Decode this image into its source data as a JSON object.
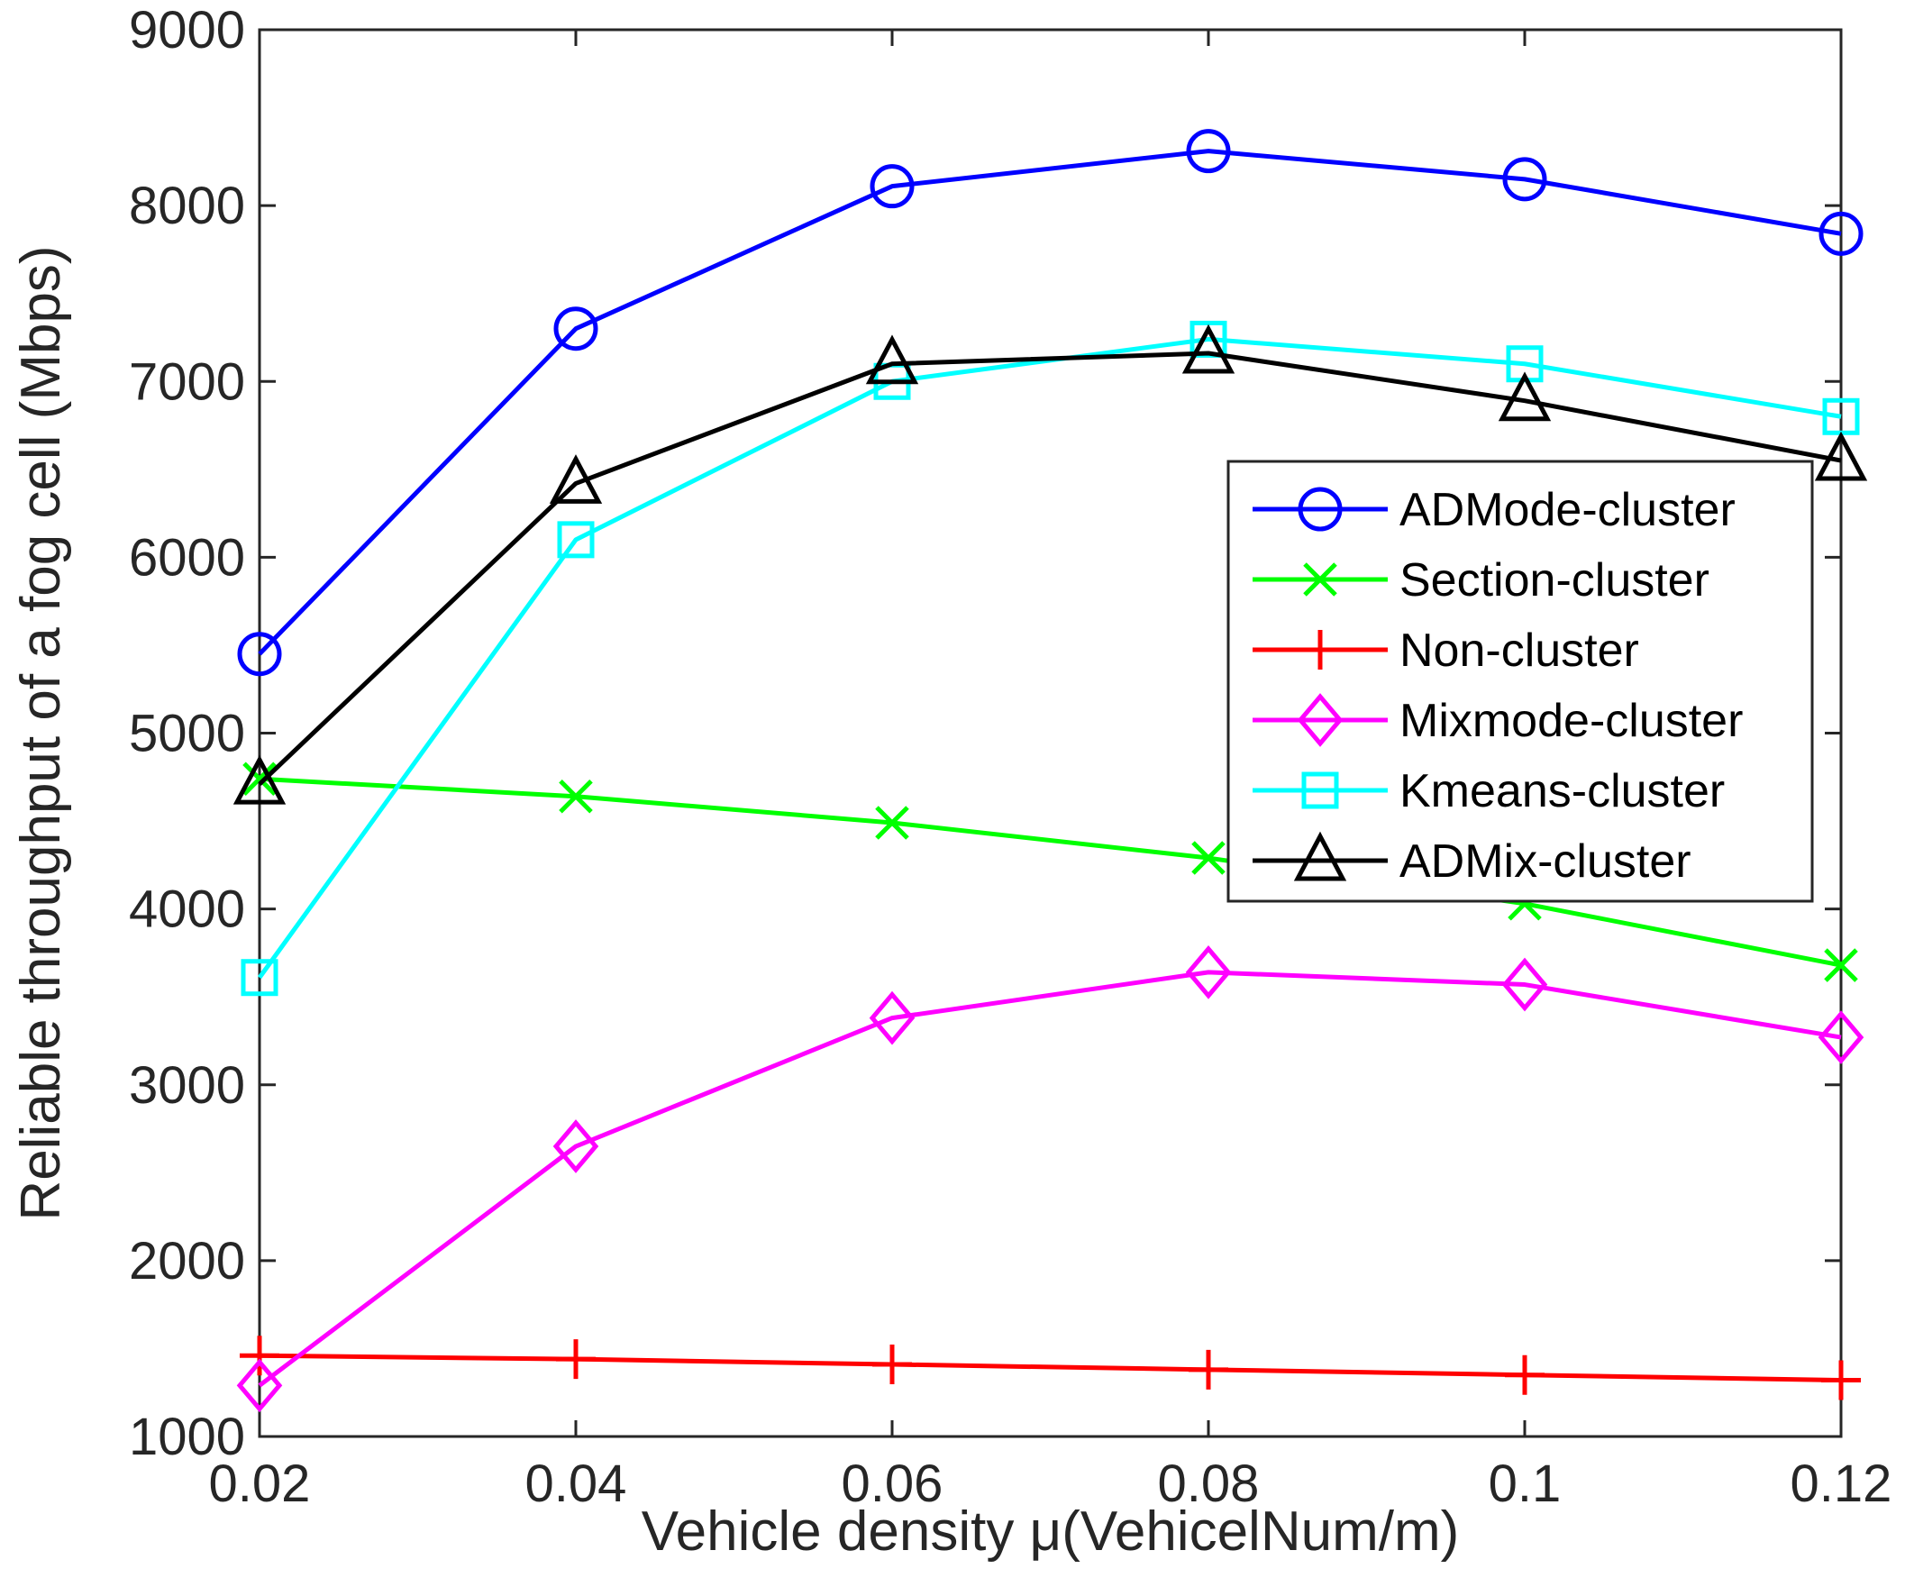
{
  "chart_data": {
    "type": "line",
    "title": "",
    "xlabel": "Vehicle density μ(VehicelNum/m)",
    "ylabel": "Reliable throughput of a fog cell (Mbps)",
    "x": [
      0.02,
      0.04,
      0.06,
      0.08,
      0.1,
      0.12
    ],
    "x_tick_labels": [
      "0.02",
      "0.04",
      "0.06",
      "0.08",
      "0.1",
      "0.12"
    ],
    "xlim": [
      0.02,
      0.12
    ],
    "ylim": [
      1000,
      9000
    ],
    "y_ticks": [
      1000,
      2000,
      3000,
      4000,
      5000,
      6000,
      7000,
      8000,
      9000
    ],
    "y_tick_labels": [
      "1000",
      "2000",
      "3000",
      "4000",
      "5000",
      "6000",
      "7000",
      "8000",
      "9000"
    ],
    "grid": false,
    "legend_position": "right",
    "series": [
      {
        "name": "ADMode-cluster",
        "color": "#0000ff",
        "marker": "circle",
        "values": [
          5450,
          7300,
          8110,
          8310,
          8150,
          7840
        ]
      },
      {
        "name": "Section-cluster",
        "color": "#00ff00",
        "marker": "x",
        "values": [
          4740,
          4640,
          4490,
          4290,
          4030,
          3680
        ]
      },
      {
        "name": "Non-cluster",
        "color": "#ff0000",
        "marker": "plus",
        "values": [
          1460,
          1440,
          1410,
          1380,
          1350,
          1320
        ]
      },
      {
        "name": "Mixmode-cluster",
        "color": "#ff00ff",
        "marker": "diamond",
        "values": [
          1290,
          2650,
          3380,
          3640,
          3570,
          3270
        ]
      },
      {
        "name": "Kmeans-cluster",
        "color": "#00ffff",
        "marker": "square",
        "values": [
          3610,
          6100,
          7000,
          7240,
          7100,
          6800
        ]
      },
      {
        "name": "ADMix-cluster",
        "color": "#000000",
        "marker": "triangle",
        "values": [
          4710,
          6420,
          7100,
          7160,
          6890,
          6550
        ]
      }
    ]
  }
}
